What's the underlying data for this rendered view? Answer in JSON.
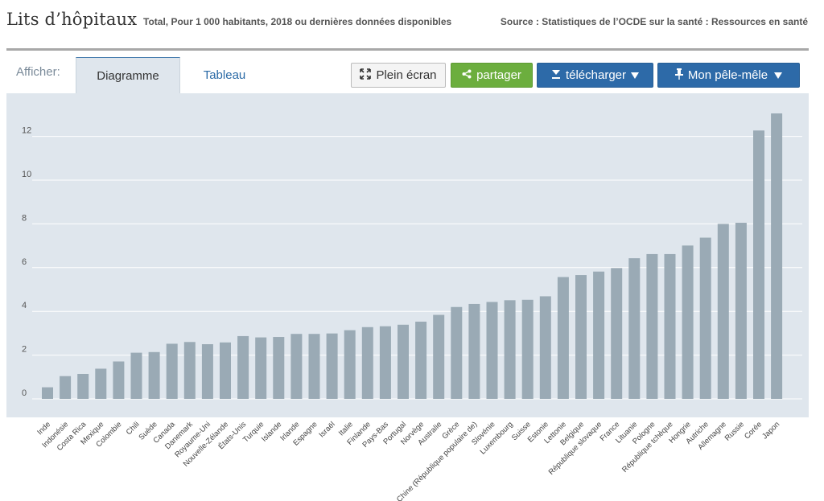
{
  "header": {
    "title": "Lits d’hôpitaux",
    "subtitle": "Total, Pour 1 000 habitants, 2018 ou dernières données disponibles",
    "source": "Source : Statistiques de l’OCDE sur la santé : Ressources en santé"
  },
  "toolbar": {
    "afficher_label": "Afficher:",
    "tab_diagramme": "Diagramme",
    "tab_tableau": "Tableau",
    "plein_ecran": "Plein écran",
    "partager": "partager",
    "telecharger": "télécharger",
    "pele_mele": "Mon pêle-mêle",
    "icons": [
      "fullscreen-icon",
      "share-icon",
      "download-icon",
      "pin-icon",
      "caret-down-icon"
    ],
    "colors": {
      "partager": "#6cae3e",
      "primary": "#2d6aa8",
      "bars": "#9aaab5",
      "plot_bg": "#dfe6ed"
    }
  },
  "chart_data": {
    "type": "bar",
    "title": "Lits d’hôpitaux",
    "xlabel": "",
    "ylabel": "",
    "ylim": [
      0,
      13.5
    ],
    "yticks": [
      0,
      2,
      4,
      6,
      8,
      10,
      12
    ],
    "grid": true,
    "categories": [
      "Inde",
      "Indonésie",
      "Costa Rica",
      "Mexique",
      "Colombie",
      "Chili",
      "Suède",
      "Canada",
      "Danemark",
      "Royaume-Uni",
      "Nouvelle-Zélande",
      "États-Unis",
      "Turquie",
      "Islande",
      "Irlande",
      "Espagne",
      "Israël",
      "Italie",
      "Finlande",
      "Pays-Bas",
      "Portugal",
      "Norvège",
      "Australie",
      "Grèce",
      "Chine (République populaire de)",
      "Slovénie",
      "Luxembourg",
      "Suisse",
      "Estonie",
      "Lettonie",
      "Belgique",
      "République slovaque",
      "France",
      "Lituanie",
      "Pologne",
      "République tchèque",
      "Hongrie",
      "Autriche",
      "Allemagne",
      "Russie",
      "Corée",
      "Japon"
    ],
    "values": [
      0.53,
      1.04,
      1.14,
      1.38,
      1.71,
      2.11,
      2.14,
      2.52,
      2.6,
      2.5,
      2.58,
      2.87,
      2.81,
      2.83,
      2.97,
      2.97,
      2.99,
      3.14,
      3.28,
      3.32,
      3.39,
      3.53,
      3.84,
      4.2,
      4.34,
      4.43,
      4.51,
      4.53,
      4.69,
      5.57,
      5.66,
      5.82,
      5.98,
      6.43,
      6.62,
      6.62,
      7.01,
      7.37,
      8.0,
      8.05,
      12.27,
      13.05
    ]
  }
}
